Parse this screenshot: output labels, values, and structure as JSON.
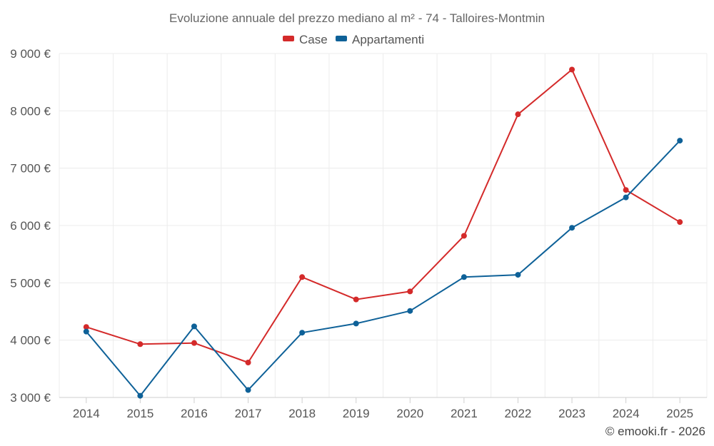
{
  "chart_data": {
    "type": "line",
    "title": "Evoluzione annuale del prezzo mediano al m² - 74 - Talloires-Montmin",
    "categories": [
      "2014",
      "2015",
      "2016",
      "2017",
      "2018",
      "2019",
      "2020",
      "2021",
      "2022",
      "2023",
      "2024",
      "2025"
    ],
    "series": [
      {
        "name": "Case",
        "color": "#d42a2a",
        "values": [
          4230,
          3930,
          3950,
          3610,
          5100,
          4710,
          4850,
          5820,
          7940,
          8720,
          6620,
          6060
        ]
      },
      {
        "name": "Appartamenti",
        "color": "#0e6198",
        "values": [
          4150,
          3030,
          4240,
          3130,
          4130,
          4290,
          4510,
          5100,
          5140,
          5960,
          6490,
          7480
        ]
      }
    ],
    "y_ticks": [
      {
        "value": 9000,
        "label": "9 000 €"
      },
      {
        "value": 8000,
        "label": "8 000 €"
      },
      {
        "value": 7000,
        "label": "7 000 €"
      },
      {
        "value": 6000,
        "label": "6 000 €"
      },
      {
        "value": 5000,
        "label": "5 000 €"
      },
      {
        "value": 4000,
        "label": "4 000 €"
      },
      {
        "value": 3000,
        "label": "3 000 €"
      }
    ],
    "ylim": [
      3000,
      9000
    ],
    "xlabel": "",
    "ylabel": "",
    "legend_position": "top-center",
    "grid": true,
    "credit": "© emooki.fr - 2026"
  }
}
